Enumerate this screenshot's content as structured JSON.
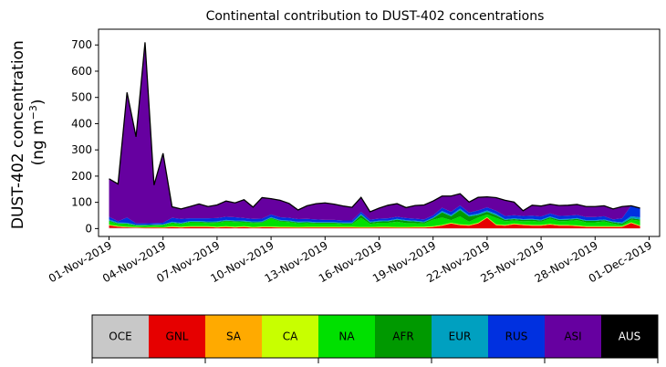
{
  "chart_data": {
    "type": "area",
    "title": "Continental contribution to DUST-402 concentrations",
    "ylabel_line1": "DUST-402 concentration",
    "ylabel_line2": "(ng m",
    "ylabel_unit_exp": "−3",
    "ylabel_close": ")",
    "xlabel": "",
    "ylim": [
      -30,
      760
    ],
    "xlim": [
      "2019-10-31T10:00",
      "2019-12-01T14:00"
    ],
    "grid": false,
    "stacked": true,
    "y_ticks": [
      0,
      100,
      200,
      300,
      400,
      500,
      600,
      700
    ],
    "x_ticks": [
      "01-Nov-2019",
      "04-Nov-2019",
      "07-Nov-2019",
      "10-Nov-2019",
      "13-Nov-2019",
      "16-Nov-2019",
      "19-Nov-2019",
      "22-Nov-2019",
      "25-Nov-2019",
      "28-Nov-2019",
      "01-Dec-2019"
    ],
    "x_tick_dates": [
      "2019-11-01",
      "2019-11-04",
      "2019-11-07",
      "2019-11-10",
      "2019-11-13",
      "2019-11-16",
      "2019-11-19",
      "2019-11-22",
      "2019-11-25",
      "2019-11-28",
      "2019-12-01"
    ],
    "x": [
      "2019-11-01T00:00",
      "2019-11-01T12:00",
      "2019-11-02T00:00",
      "2019-11-02T12:00",
      "2019-11-03T00:00",
      "2019-11-03T12:00",
      "2019-11-04T00:00",
      "2019-11-04T12:00",
      "2019-11-05T00:00",
      "2019-11-05T12:00",
      "2019-11-06T00:00",
      "2019-11-06T12:00",
      "2019-11-07T00:00",
      "2019-11-07T12:00",
      "2019-11-08T00:00",
      "2019-11-08T12:00",
      "2019-11-09T00:00",
      "2019-11-09T12:00",
      "2019-11-10T00:00",
      "2019-11-10T12:00",
      "2019-11-11T00:00",
      "2019-11-11T12:00",
      "2019-11-12T00:00",
      "2019-11-12T12:00",
      "2019-11-13T00:00",
      "2019-11-13T12:00",
      "2019-11-14T00:00",
      "2019-11-14T12:00",
      "2019-11-15T00:00",
      "2019-11-15T12:00",
      "2019-11-16T00:00",
      "2019-11-16T12:00",
      "2019-11-17T00:00",
      "2019-11-17T12:00",
      "2019-11-18T00:00",
      "2019-11-18T12:00",
      "2019-11-19T00:00",
      "2019-11-19T12:00",
      "2019-11-20T00:00",
      "2019-11-20T12:00",
      "2019-11-21T00:00",
      "2019-11-21T12:00",
      "2019-11-22T00:00",
      "2019-11-22T12:00",
      "2019-11-23T00:00",
      "2019-11-23T12:00",
      "2019-11-24T00:00",
      "2019-11-24T12:00",
      "2019-11-25T00:00",
      "2019-11-25T12:00",
      "2019-11-26T00:00",
      "2019-11-26T12:00",
      "2019-11-27T00:00",
      "2019-11-27T12:00",
      "2019-11-28T00:00",
      "2019-11-28T12:00",
      "2019-11-29T00:00",
      "2019-11-29T12:00",
      "2019-11-30T00:00",
      "2019-11-30T12:00"
    ],
    "series": [
      {
        "name": "OCE",
        "color": "#c8c8c8",
        "values": [
          2,
          2,
          2,
          2,
          1,
          1,
          1,
          1,
          1,
          1,
          1,
          1,
          1,
          1,
          1,
          1,
          1,
          1,
          1,
          1,
          1,
          1,
          1,
          1,
          1,
          1,
          1,
          1,
          1,
          1,
          1,
          1,
          1,
          1,
          1,
          1,
          1,
          1,
          1,
          1,
          1,
          1,
          1,
          1,
          1,
          1,
          1,
          1,
          1,
          1,
          1,
          1,
          1,
          1,
          1,
          1,
          1,
          1,
          1,
          1
        ]
      },
      {
        "name": "GNL",
        "color": "#e60000",
        "values": [
          10,
          5,
          3,
          2,
          2,
          3,
          2,
          5,
          3,
          5,
          5,
          5,
          3,
          5,
          3,
          5,
          2,
          4,
          4,
          3,
          3,
          2,
          3,
          3,
          3,
          3,
          3,
          3,
          2,
          2,
          3,
          3,
          2,
          2,
          3,
          3,
          5,
          10,
          18,
          12,
          10,
          18,
          40,
          12,
          10,
          15,
          12,
          10,
          10,
          14,
          10,
          10,
          8,
          5,
          5,
          5,
          5,
          5,
          20,
          8
        ]
      },
      {
        "name": "SA",
        "color": "#ffaa00",
        "values": [
          1,
          1,
          1,
          1,
          1,
          1,
          1,
          1,
          1,
          1,
          1,
          1,
          1,
          1,
          1,
          1,
          1,
          1,
          1,
          1,
          1,
          1,
          1,
          1,
          1,
          1,
          1,
          1,
          1,
          1,
          1,
          1,
          1,
          1,
          1,
          1,
          1,
          1,
          1,
          1,
          1,
          1,
          1,
          1,
          1,
          1,
          1,
          1,
          1,
          1,
          1,
          1,
          1,
          1,
          1,
          1,
          1,
          1,
          1,
          1
        ]
      },
      {
        "name": "CA",
        "color": "#c8ff00",
        "values": [
          2,
          2,
          1,
          1,
          1,
          1,
          1,
          2,
          2,
          2,
          2,
          2,
          2,
          2,
          2,
          2,
          2,
          2,
          2,
          2,
          2,
          2,
          2,
          2,
          2,
          2,
          2,
          2,
          2,
          2,
          2,
          2,
          2,
          2,
          2,
          2,
          2,
          2,
          2,
          2,
          2,
          2,
          2,
          2,
          2,
          2,
          2,
          2,
          2,
          2,
          2,
          2,
          2,
          2,
          2,
          2,
          2,
          2,
          2,
          2
        ]
      },
      {
        "name": "NA",
        "color": "#00e000",
        "values": [
          12,
          8,
          10,
          5,
          6,
          6,
          8,
          12,
          10,
          15,
          14,
          12,
          15,
          18,
          18,
          15,
          15,
          14,
          30,
          20,
          18,
          14,
          14,
          12,
          12,
          12,
          10,
          10,
          35,
          12,
          15,
          15,
          20,
          15,
          14,
          12,
          25,
          28,
          10,
          30,
          12,
          20,
          10,
          25,
          14,
          12,
          12,
          15,
          12,
          20,
          14,
          15,
          20,
          15,
          15,
          18,
          10,
          5,
          10,
          18
        ]
      },
      {
        "name": "AFR",
        "color": "#009900",
        "values": [
          3,
          2,
          2,
          2,
          2,
          2,
          2,
          2,
          2,
          2,
          3,
          3,
          3,
          3,
          3,
          3,
          3,
          3,
          3,
          3,
          3,
          3,
          3,
          3,
          3,
          3,
          3,
          3,
          10,
          5,
          5,
          6,
          8,
          8,
          6,
          5,
          5,
          20,
          15,
          25,
          20,
          10,
          10,
          10,
          5,
          5,
          5,
          5,
          5,
          5,
          5,
          5,
          5,
          5,
          5,
          5,
          5,
          5,
          5,
          5
        ]
      },
      {
        "name": "EUR",
        "color": "#00a0c0",
        "values": [
          5,
          3,
          3,
          2,
          2,
          2,
          2,
          3,
          3,
          3,
          3,
          3,
          3,
          3,
          3,
          3,
          3,
          3,
          3,
          3,
          3,
          3,
          3,
          3,
          3,
          3,
          3,
          3,
          5,
          3,
          3,
          3,
          3,
          3,
          3,
          3,
          3,
          5,
          5,
          5,
          5,
          5,
          5,
          5,
          3,
          3,
          3,
          3,
          3,
          3,
          3,
          3,
          3,
          3,
          3,
          3,
          3,
          5,
          8,
          8
        ]
      },
      {
        "name": "RUS",
        "color": "#0030e0",
        "values": [
          10,
          5,
          20,
          5,
          5,
          5,
          5,
          15,
          15,
          10,
          10,
          12,
          12,
          12,
          12,
          10,
          10,
          10,
          10,
          10,
          10,
          10,
          10,
          10,
          8,
          8,
          8,
          8,
          8,
          8,
          8,
          8,
          8,
          8,
          8,
          8,
          8,
          12,
          12,
          12,
          10,
          12,
          12,
          12,
          12,
          12,
          12,
          12,
          12,
          12,
          12,
          12,
          12,
          12,
          12,
          12,
          8,
          15,
          40,
          35
        ]
      },
      {
        "name": "ASI",
        "color": "#6600a0",
        "values": [
          145,
          142,
          477,
          330,
          690,
          145,
          265,
          42,
          38,
          45,
          55,
          45,
          50,
          60,
          55,
          70,
          45,
          80,
          60,
          65,
          55,
          35,
          50,
          60,
          65,
          60,
          55,
          50,
          55,
          30,
          40,
          50,
          50,
          40,
          50,
          55,
          55,
          45,
          60,
          45,
          40,
          50,
          40,
          50,
          60,
          50,
          20,
          40,
          40,
          35,
          40,
          40,
          40,
          40,
          40,
          40,
          40,
          45,
          0,
          0
        ]
      },
      {
        "name": "AUS",
        "color": "#000000",
        "values": [
          0,
          0,
          0,
          0,
          0,
          0,
          0,
          0,
          0,
          0,
          0,
          0,
          0,
          0,
          0,
          0,
          0,
          0,
          0,
          0,
          0,
          0,
          0,
          0,
          0,
          0,
          0,
          0,
          0,
          0,
          0,
          0,
          0,
          0,
          0,
          0,
          0,
          0,
          0,
          0,
          0,
          0,
          0,
          0,
          0,
          0,
          0,
          0,
          0,
          0,
          0,
          0,
          0,
          0,
          0,
          0,
          0,
          0,
          0,
          0
        ]
      }
    ],
    "legend": {
      "placement": "bottom",
      "entries": [
        {
          "label": "OCE",
          "color": "#c8c8c8"
        },
        {
          "label": "GNL",
          "color": "#e60000"
        },
        {
          "label": "SA",
          "color": "#ffaa00"
        },
        {
          "label": "CA",
          "color": "#c8ff00"
        },
        {
          "label": "NA",
          "color": "#00e000"
        },
        {
          "label": "AFR",
          "color": "#009900"
        },
        {
          "label": "EUR",
          "color": "#00a0c0"
        },
        {
          "label": "RUS",
          "color": "#0030e0"
        },
        {
          "label": "ASI",
          "color": "#6600a0"
        },
        {
          "label": "AUS",
          "color": "#000000",
          "text_color": "#ffffff"
        }
      ]
    }
  }
}
